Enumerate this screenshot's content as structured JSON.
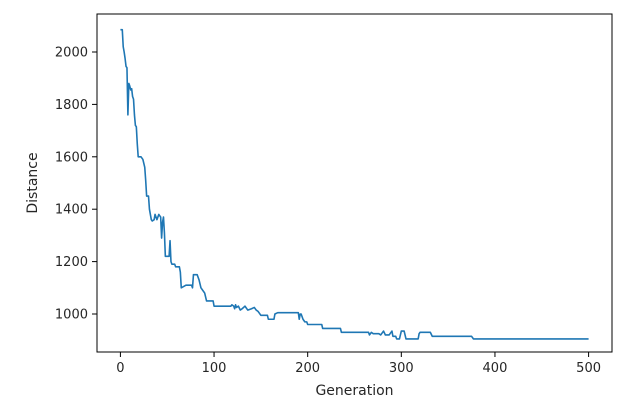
{
  "chart_data": {
    "type": "line",
    "xlabel": "Generation",
    "ylabel": "Distance",
    "xlim": [
      -25,
      525
    ],
    "ylim": [
      855,
      2145
    ],
    "x_ticks": [
      0,
      100,
      200,
      300,
      400,
      500
    ],
    "y_ticks": [
      1000,
      1200,
      1400,
      1600,
      1800,
      2000
    ],
    "grid": false,
    "line_color": "#1f77b4",
    "series": [
      {
        "points": [
          [
            0,
            2085
          ],
          [
            1,
            2085
          ],
          [
            2,
            2085
          ],
          [
            3,
            2020
          ],
          [
            4,
            2000
          ],
          [
            5,
            1975
          ],
          [
            6,
            1945
          ],
          [
            7,
            1940
          ],
          [
            8,
            1760
          ],
          [
            9,
            1880
          ],
          [
            10,
            1870
          ],
          [
            11,
            1855
          ],
          [
            12,
            1860
          ],
          [
            13,
            1830
          ],
          [
            14,
            1820
          ],
          [
            15,
            1760
          ],
          [
            16,
            1720
          ],
          [
            17,
            1715
          ],
          [
            18,
            1650
          ],
          [
            19,
            1600
          ],
          [
            22,
            1600
          ],
          [
            24,
            1590
          ],
          [
            26,
            1560
          ],
          [
            27,
            1510
          ],
          [
            28,
            1450
          ],
          [
            30,
            1450
          ],
          [
            31,
            1400
          ],
          [
            32,
            1380
          ],
          [
            33,
            1360
          ],
          [
            34,
            1355
          ],
          [
            36,
            1360
          ],
          [
            37,
            1380
          ],
          [
            39,
            1360
          ],
          [
            41,
            1380
          ],
          [
            43,
            1370
          ],
          [
            44,
            1290
          ],
          [
            45,
            1350
          ],
          [
            46,
            1370
          ],
          [
            47,
            1310
          ],
          [
            48,
            1220
          ],
          [
            52,
            1220
          ],
          [
            53,
            1280
          ],
          [
            54,
            1200
          ],
          [
            55,
            1190
          ],
          [
            58,
            1190
          ],
          [
            59,
            1180
          ],
          [
            63,
            1180
          ],
          [
            64,
            1160
          ],
          [
            65,
            1100
          ],
          [
            70,
            1110
          ],
          [
            76,
            1110
          ],
          [
            77,
            1100
          ],
          [
            78,
            1150
          ],
          [
            82,
            1150
          ],
          [
            84,
            1130
          ],
          [
            86,
            1100
          ],
          [
            89,
            1085
          ],
          [
            90,
            1080
          ],
          [
            92,
            1050
          ],
          [
            99,
            1050
          ],
          [
            100,
            1030
          ],
          [
            118,
            1030
          ],
          [
            119,
            1035
          ],
          [
            121,
            1030
          ],
          [
            122,
            1020
          ],
          [
            123,
            1035
          ],
          [
            124,
            1025
          ],
          [
            126,
            1030
          ],
          [
            128,
            1015
          ],
          [
            130,
            1020
          ],
          [
            133,
            1030
          ],
          [
            136,
            1015
          ],
          [
            140,
            1020
          ],
          [
            143,
            1025
          ],
          [
            145,
            1015
          ],
          [
            147,
            1010
          ],
          [
            148,
            1005
          ],
          [
            150,
            995
          ],
          [
            157,
            995
          ],
          [
            158,
            980
          ],
          [
            164,
            980
          ],
          [
            165,
            1000
          ],
          [
            168,
            1005
          ],
          [
            190,
            1005
          ],
          [
            191,
            980
          ],
          [
            192,
            1000
          ],
          [
            193,
            1000
          ],
          [
            195,
            980
          ],
          [
            197,
            970
          ],
          [
            199,
            970
          ],
          [
            200,
            960
          ],
          [
            215,
            960
          ],
          [
            216,
            945
          ],
          [
            235,
            945
          ],
          [
            236,
            930
          ],
          [
            265,
            930
          ],
          [
            266,
            920
          ],
          [
            268,
            930
          ],
          [
            270,
            925
          ],
          [
            276,
            925
          ],
          [
            278,
            920
          ],
          [
            281,
            935
          ],
          [
            283,
            920
          ],
          [
            287,
            920
          ],
          [
            290,
            935
          ],
          [
            291,
            915
          ],
          [
            294,
            915
          ],
          [
            295,
            905
          ],
          [
            298,
            905
          ],
          [
            300,
            935
          ],
          [
            303,
            935
          ],
          [
            305,
            905
          ],
          [
            318,
            905
          ],
          [
            319,
            925
          ],
          [
            320,
            930
          ],
          [
            331,
            930
          ],
          [
            333,
            915
          ],
          [
            375,
            915
          ],
          [
            377,
            905
          ],
          [
            500,
            905
          ]
        ]
      }
    ]
  }
}
